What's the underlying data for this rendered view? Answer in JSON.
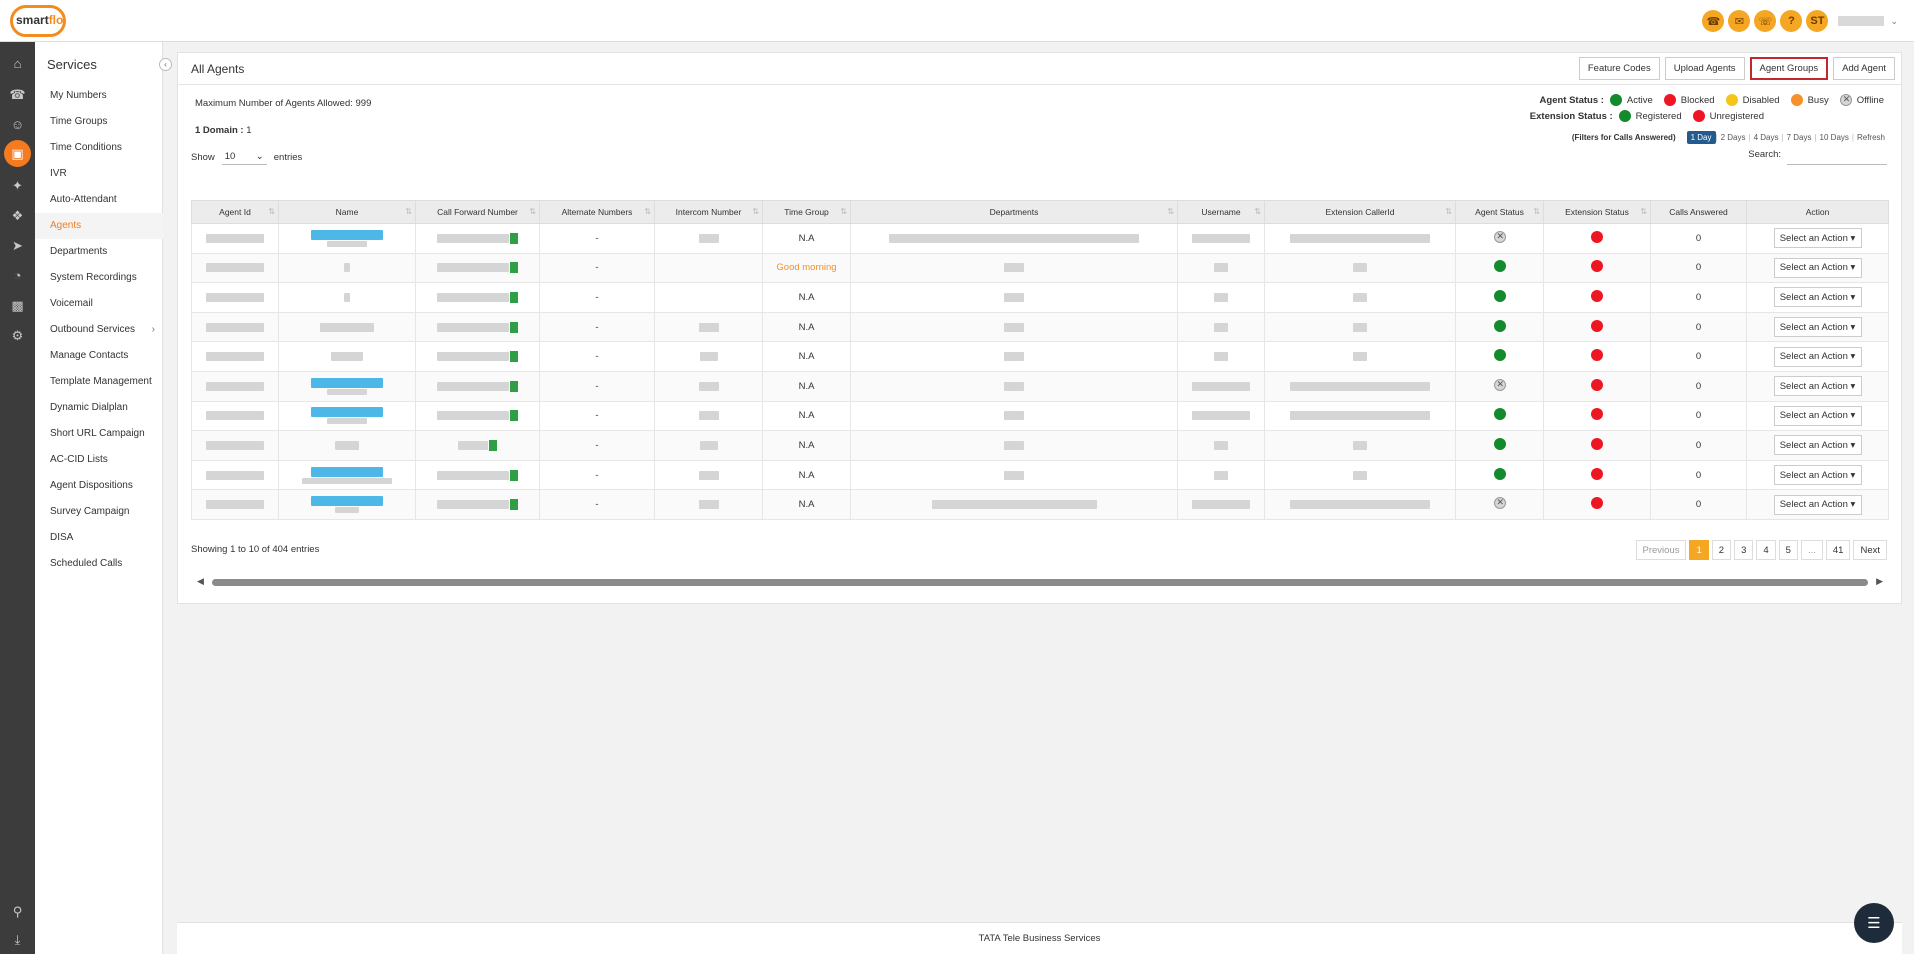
{
  "brand": {
    "logo_text_1": "smart",
    "logo_text_2": "flo"
  },
  "topbar": {
    "user_initials": "ST"
  },
  "sidebar": {
    "title": "Services",
    "items": [
      {
        "label": "My Numbers"
      },
      {
        "label": "Time Groups"
      },
      {
        "label": "Time Conditions"
      },
      {
        "label": "IVR"
      },
      {
        "label": "Auto-Attendant"
      },
      {
        "label": "Agents",
        "active": true
      },
      {
        "label": "Departments"
      },
      {
        "label": "System Recordings"
      },
      {
        "label": "Voicemail"
      },
      {
        "label": "Outbound Services",
        "has_submenu": true
      },
      {
        "label": "Manage Contacts"
      },
      {
        "label": "Template Management"
      },
      {
        "label": "Dynamic Dialplan"
      },
      {
        "label": "Short URL Campaign"
      },
      {
        "label": "AC-CID Lists"
      },
      {
        "label": "Agent Dispositions"
      },
      {
        "label": "Survey Campaign"
      },
      {
        "label": "DISA"
      },
      {
        "label": "Scheduled Calls"
      }
    ]
  },
  "page": {
    "title": "All Agents",
    "buttons": {
      "feature_codes": "Feature Codes",
      "upload_agents": "Upload Agents",
      "agent_groups": "Agent Groups",
      "add_agent": "Add Agent"
    },
    "max_agents": "Maximum Number of Agents Allowed: 999",
    "domain_label": "1 Domain :",
    "domain_value": "1"
  },
  "legend": {
    "agent_status_label": "Agent Status :",
    "agent_statuses": {
      "active": "Active",
      "blocked": "Blocked",
      "disabled": "Disabled",
      "busy": "Busy",
      "offline": "Offline"
    },
    "extension_status_label": "Extension Status :",
    "extension_statuses": {
      "registered": "Registered",
      "unregistered": "Unregistered"
    },
    "colors": {
      "green": "#138a2c",
      "red": "#ee1622",
      "yellow": "#f5c518",
      "orange": "#f5902b"
    }
  },
  "filters": {
    "label": "(Filters for Calls Answered)",
    "options": [
      "1 Day",
      "2 Days",
      "4 Days",
      "7 Days",
      "10 Days",
      "Refresh"
    ],
    "selected": "1 Day"
  },
  "table_controls": {
    "show_label": "Show",
    "entries_value": "10",
    "entries_label": "entries",
    "search_label": "Search:"
  },
  "table": {
    "headers": [
      "Agent Id",
      "Name",
      "Call Forward Number",
      "Alternate Numbers",
      "Intercom Number",
      "Time Group",
      "Departments",
      "Username",
      "Extension CallerId",
      "Agent Status",
      "Extension Status",
      "Calls Answered",
      "Action"
    ],
    "rows": [
      {
        "alternate": "-",
        "time_group": "N.A",
        "agent_status": "offline",
        "ext_status": "unregistered",
        "calls": "0",
        "action": "Select an Action"
      },
      {
        "alternate": "-",
        "time_group": "Good morning",
        "agent_status": "active",
        "ext_status": "unregistered",
        "calls": "0",
        "action": "Select an Action"
      },
      {
        "alternate": "-",
        "time_group": "N.A",
        "agent_status": "active",
        "ext_status": "unregistered",
        "calls": "0",
        "action": "Select an Action"
      },
      {
        "alternate": "-",
        "time_group": "N.A",
        "agent_status": "active",
        "ext_status": "unregistered",
        "calls": "0",
        "action": "Select an Action"
      },
      {
        "alternate": "-",
        "time_group": "N.A",
        "agent_status": "active",
        "ext_status": "unregistered",
        "calls": "0",
        "action": "Select an Action"
      },
      {
        "alternate": "-",
        "time_group": "N.A",
        "agent_status": "offline",
        "ext_status": "unregistered",
        "calls": "0",
        "action": "Select an Action"
      },
      {
        "alternate": "-",
        "time_group": "N.A",
        "agent_status": "active",
        "ext_status": "unregistered",
        "calls": "0",
        "action": "Select an Action"
      },
      {
        "alternate": "-",
        "time_group": "N.A",
        "agent_status": "active",
        "ext_status": "unregistered",
        "calls": "0",
        "action": "Select an Action"
      },
      {
        "alternate": "-",
        "time_group": "N.A",
        "agent_status": "active",
        "ext_status": "unregistered",
        "calls": "0",
        "action": "Select an Action"
      },
      {
        "alternate": "-",
        "time_group": "N.A",
        "agent_status": "offline",
        "ext_status": "unregistered",
        "calls": "0",
        "action": "Select an Action"
      }
    ]
  },
  "pagination": {
    "summary": "Showing 1 to 10 of 404 entries",
    "previous": "Previous",
    "pages": [
      "1",
      "2",
      "3",
      "4",
      "5",
      "...",
      "41"
    ],
    "current": "1",
    "next": "Next"
  },
  "footer": {
    "text": "TATA Tele Business Services"
  }
}
